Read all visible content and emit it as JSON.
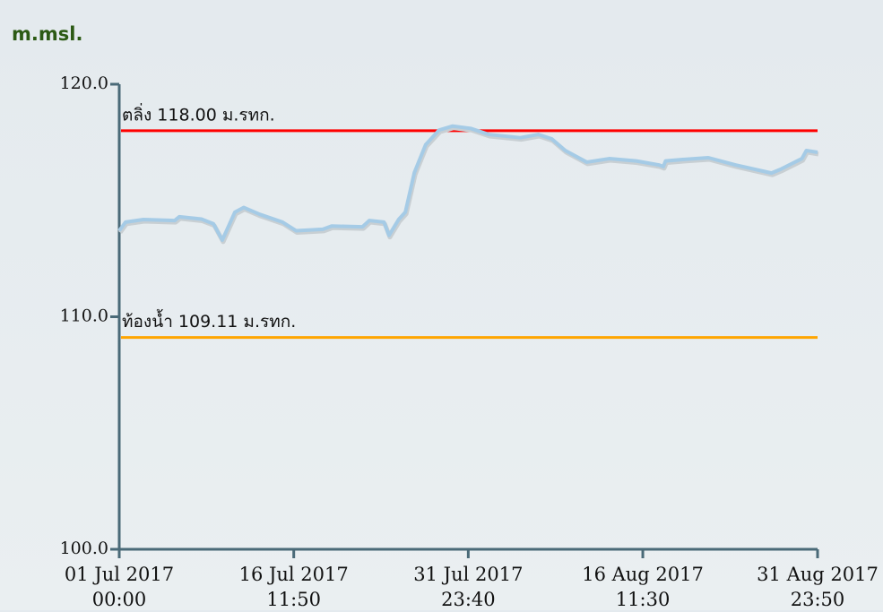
{
  "chart_data": {
    "type": "line",
    "y_axis_label": "m.msl.",
    "xlim": [
      0,
      61.993
    ],
    "ylim": [
      100,
      120
    ],
    "yticks": [
      {
        "value": 100,
        "label": "100.0"
      },
      {
        "value": 110,
        "label": "110.0"
      },
      {
        "value": 120,
        "label": "120.0"
      }
    ],
    "xticks": [
      {
        "value": 0,
        "label": "01 Jul 2017\n00:00"
      },
      {
        "value": 15.493,
        "label": "16 Jul 2017\n11:50"
      },
      {
        "value": 30.986,
        "label": "31 Jul 2017\n23:40"
      },
      {
        "value": 46.479,
        "label": "16 Aug 2017\n11:30"
      },
      {
        "value": 61.993,
        "label": "31 Aug 2017\n23:50"
      }
    ],
    "reference_lines": [
      {
        "label": "ตลิ่ง 118.00 ม.รทก.",
        "value": 118,
        "color": "#ff0000"
      },
      {
        "label": "ท้องน้ำ 109.11 ม.รทก.",
        "value": 109.11,
        "color": "#ffa500"
      }
    ],
    "series": [
      {
        "color": "#a5cbe6",
        "x": [
          0,
          0.56,
          2.15,
          4.93,
          5.33,
          7.3,
          8.36,
          9.15,
          10.27,
          11.06,
          12.5,
          14.5,
          15.7,
          18.07,
          18.86,
          21.6,
          22.2,
          23.5,
          23.95,
          24.8,
          25.4,
          26.2,
          27.2,
          28.4,
          29.6,
          31.2,
          32.8,
          35.6,
          37.2,
          38.4,
          39.6,
          41.5,
          43.5,
          45.9,
          47.9,
          48.3,
          48.5,
          49.9,
          52.3,
          54.7,
          57.9,
          58.7,
          60.6,
          61.0,
          61.99
        ],
        "values": [
          113.7,
          114.07,
          114.18,
          114.14,
          114.3,
          114.2,
          114.0,
          113.3,
          114.5,
          114.7,
          114.4,
          114.07,
          113.7,
          113.76,
          113.9,
          113.87,
          114.14,
          114.07,
          113.5,
          114.18,
          114.5,
          116.2,
          117.4,
          118.03,
          118.2,
          118.1,
          117.84,
          117.7,
          117.84,
          117.65,
          117.15,
          116.65,
          116.8,
          116.7,
          116.53,
          116.46,
          116.7,
          116.76,
          116.84,
          116.53,
          116.18,
          116.34,
          116.8,
          117.15,
          117.07
        ]
      }
    ]
  }
}
